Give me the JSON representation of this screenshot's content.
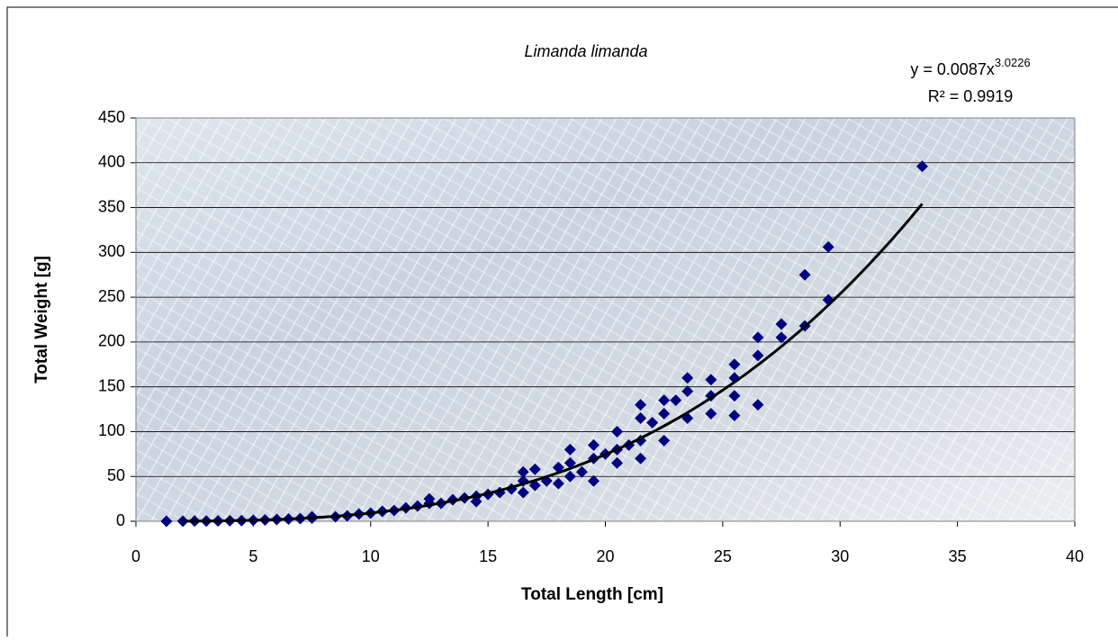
{
  "chart_data": {
    "type": "scatter",
    "title": "Limanda limanda",
    "x_label": "Total Length [cm]",
    "y_label": "Total Weight [g]",
    "color": "#000080",
    "x": [
      1.3,
      2,
      2.5,
      3,
      3.5,
      4,
      4.5,
      5,
      5.5,
      6,
      6.5,
      7,
      7.5,
      7.5,
      8.5,
      9,
      9.5,
      10,
      10.5,
      11,
      11.5,
      12,
      12.5,
      12.5,
      13,
      13.5,
      14,
      14.5,
      14.5,
      15,
      15.5,
      16,
      16.5,
      16.5,
      16.5,
      17,
      17,
      17.5,
      18,
      18,
      18.5,
      18.5,
      18.5,
      19,
      19.5,
      19.5,
      19.5,
      20,
      20.5,
      20.5,
      20.5,
      21,
      21.5,
      21.5,
      21.5,
      21.5,
      22,
      22.5,
      22.5,
      22.5,
      23,
      23.5,
      23.5,
      23.5,
      24.5,
      24.5,
      24.5,
      25.5,
      25.5,
      25.5,
      25.5,
      26.5,
      26.5,
      26.5,
      27.5,
      27.5,
      28.5,
      28.5,
      29.5,
      29.5,
      33.5
    ],
    "values": [
      0,
      0.1,
      0.2,
      0.3,
      0.4,
      0.6,
      0.8,
      1.1,
      1.5,
      2,
      2.5,
      3,
      3.5,
      5,
      5,
      6,
      8,
      9,
      11,
      12,
      15,
      17,
      20,
      25,
      20,
      24,
      26,
      22,
      28,
      30,
      32,
      36,
      32,
      45,
      55,
      40,
      58,
      45,
      42,
      60,
      50,
      80,
      65,
      55,
      45,
      85,
      70,
      75,
      65,
      80,
      100,
      85,
      70,
      90,
      115,
      130,
      110,
      90,
      120,
      135,
      135,
      115,
      145,
      160,
      120,
      140,
      158,
      118,
      140,
      160,
      175,
      130,
      185,
      205,
      205,
      220,
      218,
      275,
      247,
      306,
      396
    ],
    "trendline": {
      "equation": "y = 0.0087x",
      "exponent": "3.0226",
      "r_squared": "R² = 0.9919",
      "x_range": [
        2,
        33.5
      ],
      "color": "#000000"
    },
    "xlim": [
      0,
      40
    ],
    "xticks": [
      0,
      5,
      10,
      15,
      20,
      25,
      30,
      35,
      40
    ],
    "ylim": [
      0,
      450
    ],
    "yticks": [
      0,
      50,
      100,
      150,
      200,
      250,
      300,
      350,
      400,
      450
    ],
    "grid": true
  }
}
